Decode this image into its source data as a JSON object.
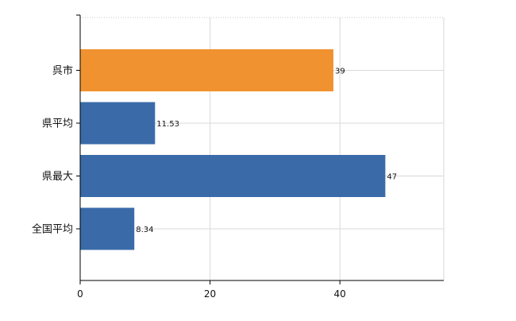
{
  "chart_data": {
    "type": "bar",
    "orientation": "horizontal",
    "title": "",
    "xlabel": "",
    "ylabel": "",
    "categories": [
      "呉市",
      "県平均",
      "県最大",
      "全国平均"
    ],
    "values": [
      39,
      11.53,
      47,
      8.34
    ],
    "value_labels": [
      "39",
      "11.53",
      "47",
      "8.34"
    ],
    "bar_colors": [
      "#f0922f",
      "#3a6ba8",
      "#3a6ba8",
      "#3a6ba8"
    ],
    "xlim": [
      0,
      56
    ],
    "x_ticks": [
      0,
      20,
      40
    ],
    "x_tick_labels": [
      "0",
      "20",
      "40"
    ],
    "grid": true,
    "legend": "none"
  }
}
